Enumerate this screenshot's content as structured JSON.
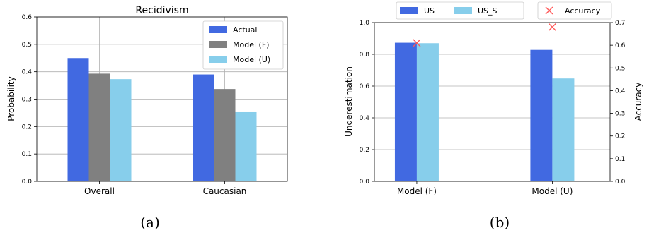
{
  "colors": {
    "actual": "#4169e1",
    "model_f": "#808080",
    "model_u": "#87ceeb",
    "us": "#4169e1",
    "us_s": "#87ceeb",
    "accuracy": "#ff5a5a"
  },
  "captions": [
    "(a)",
    "(b)"
  ],
  "chart_data": [
    {
      "type": "bar",
      "title": "Recidivism",
      "xlabel": "",
      "ylabel": "Probability",
      "categories": [
        "Overall",
        "Caucasian"
      ],
      "series": [
        {
          "name": "Actual",
          "values": [
            0.45,
            0.39
          ]
        },
        {
          "name": "Model (F)",
          "values": [
            0.393,
            0.337
          ]
        },
        {
          "name": "Model (U)",
          "values": [
            0.373,
            0.255
          ]
        }
      ],
      "ylim": [
        0,
        0.6
      ],
      "yticks": [
        "0.0",
        "0.1",
        "0.2",
        "0.3",
        "0.4",
        "0.5",
        "0.6"
      ],
      "grid": true,
      "legend": "top-right"
    },
    {
      "type": "bar",
      "title": "",
      "xlabel": "",
      "ylabel": "Underestimation",
      "ylabel_right": "Accuracy",
      "categories": [
        "Model (F)",
        "Model (U)"
      ],
      "series": [
        {
          "name": "US",
          "values": [
            0.873,
            0.828
          ]
        },
        {
          "name": "US_S",
          "values": [
            0.87,
            0.648
          ]
        }
      ],
      "secondary_series": {
        "name": "Accuracy",
        "marker": "x",
        "values": [
          0.61,
          0.68
        ]
      },
      "ylim": [
        0,
        1.0
      ],
      "ylim_right": [
        0,
        0.7
      ],
      "yticks": [
        "0.0",
        "0.2",
        "0.4",
        "0.6",
        "0.8",
        "1.0"
      ],
      "yticks_right": [
        "0.0",
        "0.1",
        "0.2",
        "0.3",
        "0.4",
        "0.5",
        "0.6",
        "0.7"
      ],
      "grid": true,
      "legend": "top"
    }
  ]
}
